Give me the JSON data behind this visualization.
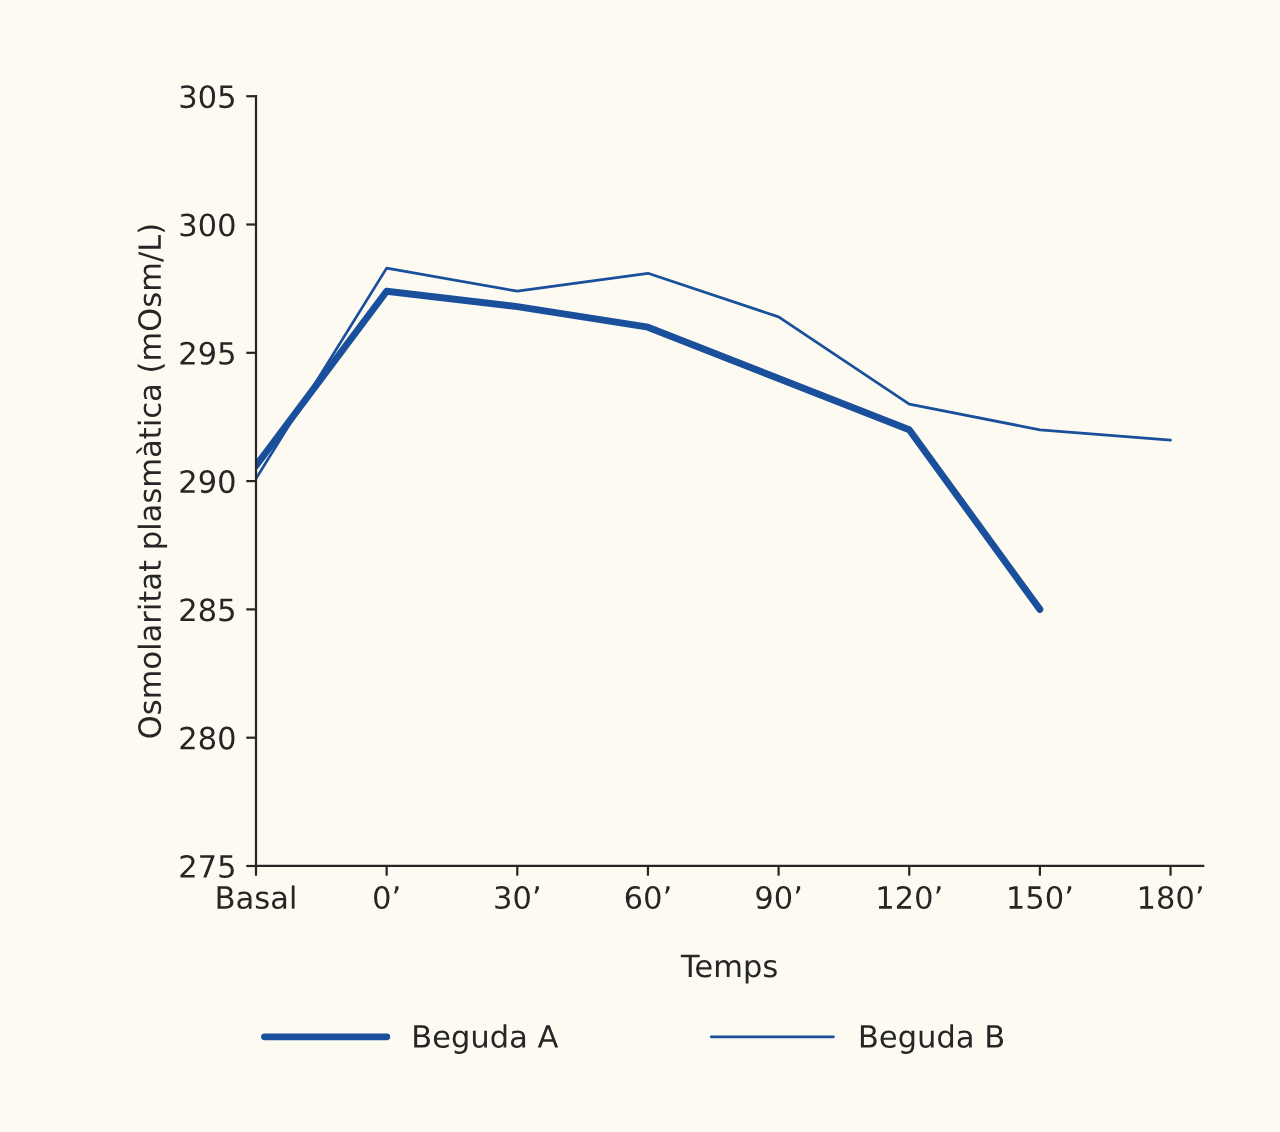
{
  "chart_data": {
    "type": "line",
    "xlabel": "Temps",
    "ylabel": "Osmolaritat plasmàtica (mOsm/L)",
    "categories": [
      "Basal",
      "0’",
      "30’",
      "60’",
      "90’",
      "120’",
      "150’",
      "180’"
    ],
    "series": [
      {
        "name": "Beguda A",
        "color": "#1a4f9c",
        "values": [
          290.6,
          297.4,
          296.8,
          296.0,
          294.0,
          292.0,
          285.0,
          null
        ]
      },
      {
        "name": "Beguda B",
        "color": "#1a4f9c",
        "values": [
          290.1,
          298.3,
          297.4,
          298.1,
          296.4,
          293.0,
          292.0,
          291.6
        ]
      }
    ],
    "ylim": [
      275,
      305
    ],
    "yticks": [
      275,
      280,
      285,
      290,
      295,
      300,
      305
    ],
    "grid": false,
    "legend": "bottom",
    "marker": "none",
    "line_style": "solid"
  }
}
